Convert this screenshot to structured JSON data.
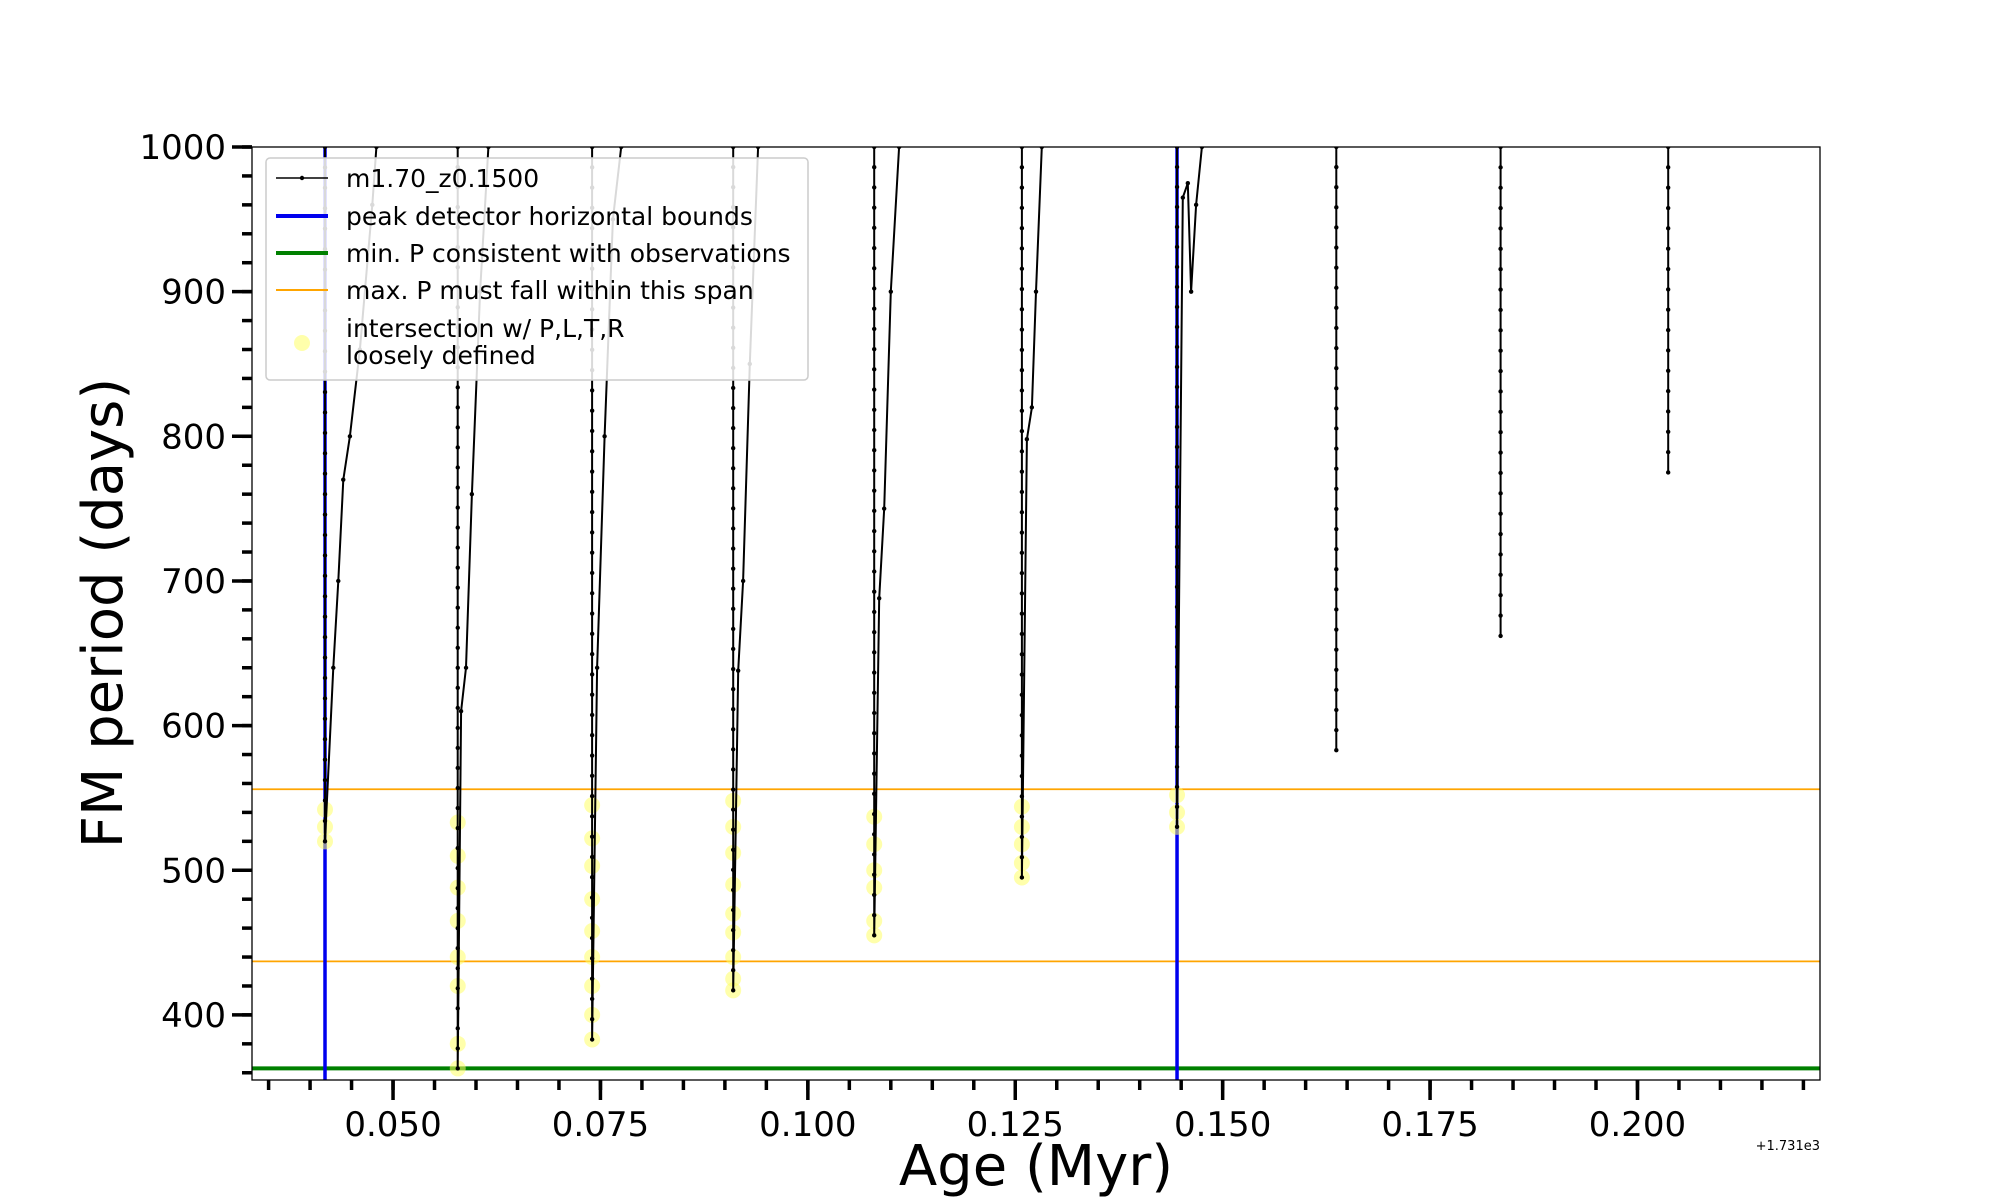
{
  "chart_data": {
    "type": "line",
    "xlabel": "Age (Myr)",
    "ylabel": "FM period (days)",
    "x_offset_label": "+1.731e3",
    "xlim": [
      0.033,
      0.222
    ],
    "ylim": [
      355,
      1000
    ],
    "x_ticks": [
      {
        "value": 0.05,
        "label": "0.050"
      },
      {
        "value": 0.075,
        "label": "0.075"
      },
      {
        "value": 0.1,
        "label": "0.100"
      },
      {
        "value": 0.125,
        "label": "0.125"
      },
      {
        "value": 0.15,
        "label": "0.150"
      },
      {
        "value": 0.175,
        "label": "0.175"
      },
      {
        "value": 0.2,
        "label": "0.200"
      }
    ],
    "y_ticks": [
      {
        "value": 400,
        "label": "400"
      },
      {
        "value": 500,
        "label": "500"
      },
      {
        "value": 600,
        "label": "600"
      },
      {
        "value": 700,
        "label": "700"
      },
      {
        "value": 800,
        "label": "800"
      },
      {
        "value": 900,
        "label": "900"
      },
      {
        "value": 1000,
        "label": "1000"
      }
    ],
    "legend": {
      "placement": "top-left",
      "entries": [
        {
          "label": "m1.70_z0.1500",
          "style": "line-with-markers",
          "color": "#000000"
        },
        {
          "label": "peak detector horizontal bounds",
          "style": "line",
          "color": "#0000ee"
        },
        {
          "label": "min. P consistent with observations",
          "style": "line",
          "color": "#008000"
        },
        {
          "label": "max. P must fall within this span",
          "style": "line",
          "color": "#ffa500"
        },
        {
          "label": "intersection w/ P,L,T,R",
          "label_line2": "loosely defined",
          "style": "marker",
          "color": "#ffff66"
        }
      ]
    },
    "vertical_bounds": [
      0.0418,
      0.1445
    ],
    "min_period": 363,
    "max_period_span": [
      437,
      556
    ],
    "series": [
      {
        "name": "m1.70_z0.1500",
        "color": "#000000",
        "segments": [
          {
            "start": 0.0418,
            "min": 520,
            "tail": [
              [
                0.0428,
                640
              ],
              [
                0.0434,
                700
              ],
              [
                0.044,
                770
              ],
              [
                0.0448,
                800
              ],
              [
                0.046,
                860
              ],
              [
                0.0475,
                960
              ],
              [
                0.048,
                1000
              ]
            ]
          },
          {
            "start": 0.0578,
            "min": 363,
            "tail": [
              [
                0.0582,
                610
              ],
              [
                0.0588,
                640
              ],
              [
                0.0595,
                760
              ],
              [
                0.0605,
                900
              ],
              [
                0.0615,
                1000
              ]
            ]
          },
          {
            "start": 0.074,
            "min": 383,
            "tail": [
              [
                0.0746,
                640
              ],
              [
                0.0755,
                800
              ],
              [
                0.0765,
                950
              ],
              [
                0.0775,
                1000
              ]
            ]
          },
          {
            "start": 0.091,
            "min": 417,
            "tail": [
              [
                0.0916,
                638
              ],
              [
                0.0922,
                700
              ],
              [
                0.093,
                850
              ],
              [
                0.094,
                1000
              ]
            ]
          },
          {
            "start": 0.108,
            "min": 455,
            "tail": [
              [
                0.1086,
                688
              ],
              [
                0.1092,
                750
              ],
              [
                0.11,
                900
              ],
              [
                0.111,
                1000
              ]
            ]
          },
          {
            "start": 0.1258,
            "min": 495,
            "tail": [
              [
                0.1264,
                798
              ],
              [
                0.127,
                820
              ],
              [
                0.1275,
                900
              ],
              [
                0.1282,
                1000
              ]
            ]
          },
          {
            "start": 0.1445,
            "min": 530,
            "tail": [
              [
                0.1452,
                965
              ],
              [
                0.1458,
                975
              ],
              [
                0.1462,
                900
              ],
              [
                0.1468,
                960
              ],
              [
                0.1475,
                1000
              ]
            ]
          },
          {
            "start": 0.1637,
            "min": 583,
            "tail": []
          },
          {
            "start": 0.1835,
            "min": 662,
            "tail": []
          },
          {
            "start": 0.2037,
            "min": 775,
            "tail": []
          }
        ]
      }
    ],
    "intersections": [
      {
        "x": 0.0418,
        "y": [
          520,
          530,
          542
        ]
      },
      {
        "x": 0.0578,
        "y": [
          363,
          380,
          420,
          440,
          465,
          488,
          510,
          533
        ]
      },
      {
        "x": 0.074,
        "y": [
          383,
          400,
          420,
          440,
          458,
          480,
          503,
          522,
          545
        ]
      },
      {
        "x": 0.091,
        "y": [
          417,
          425,
          440,
          457,
          470,
          490,
          512,
          530,
          548
        ]
      },
      {
        "x": 0.108,
        "y": [
          455,
          465,
          488,
          500,
          518,
          537
        ]
      },
      {
        "x": 0.1258,
        "y": [
          495,
          505,
          518,
          530,
          544
        ]
      },
      {
        "x": 0.1445,
        "y": [
          530,
          540,
          552
        ]
      }
    ]
  }
}
